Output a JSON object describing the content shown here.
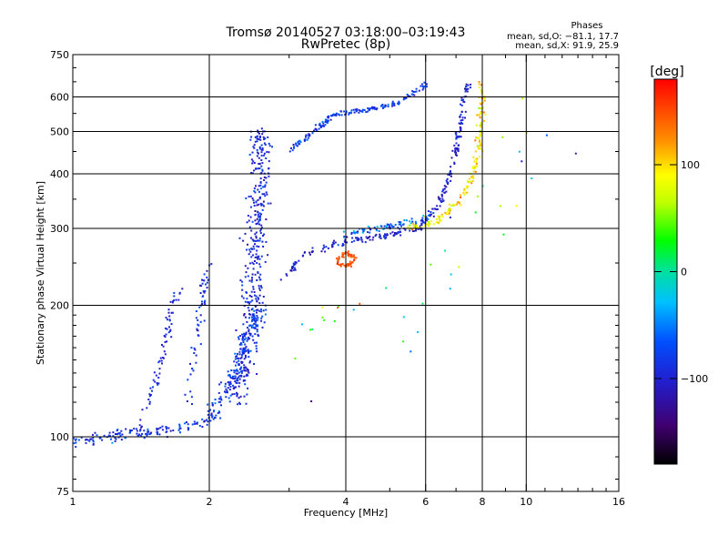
{
  "chart_data": {
    "type": "scatter",
    "title": "Tromsø 20140527 03:18:00–03:19:43",
    "subtitle": "RwPretec (8p)",
    "xlabel": "Frequency [MHz]",
    "ylabel": "Stationary phase Virtual Height [km]",
    "xscale": "log",
    "yscale": "log",
    "xlim": [
      1,
      16
    ],
    "ylim": [
      75,
      750
    ],
    "x_ticks": [
      1,
      2,
      4,
      6,
      8,
      10,
      16
    ],
    "x_minor_ticks": [
      3,
      5,
      7,
      9,
      11,
      12,
      13,
      14,
      15
    ],
    "y_ticks": [
      75,
      100,
      200,
      300,
      400,
      500,
      600,
      750
    ],
    "y_minor_ticks": [
      80,
      90,
      110,
      120,
      130,
      140,
      150,
      160,
      170,
      180,
      190,
      250,
      350,
      450,
      550,
      650,
      700
    ],
    "x_gridlines": [
      2,
      4,
      6,
      8,
      10
    ],
    "y_gridlines": [
      100,
      200,
      300,
      400,
      500,
      600
    ],
    "grid": true,
    "stats": {
      "heading": "Phases",
      "o_line": "mean, sd,O: −81.1, 17.7",
      "x_line": "mean, sd,X:  91.9, 25.9"
    },
    "colorbar": {
      "label": "[deg]",
      "range": [
        -180,
        180
      ],
      "ticks": [
        100,
        0,
        -100
      ],
      "tick_labels": [
        "100",
        "0",
        "−100"
      ]
    },
    "series": [
      {
        "name": "low-frequency E layer trace",
        "phase": -85,
        "spread": 25,
        "segments": [
          [
            1.0,
            98
          ],
          [
            1.3,
            101
          ],
          [
            1.7,
            105
          ],
          [
            2.05,
            110
          ]
        ],
        "count": 140,
        "jitter": 0.04
      },
      {
        "name": "F1 vertical branch near 1.6 MHz",
        "phase": -95,
        "spread": 15,
        "segments": [
          [
            1.4,
            105
          ],
          [
            1.55,
            140
          ],
          [
            1.65,
            200
          ],
          [
            1.72,
            215
          ]
        ],
        "count": 70,
        "jitter": 0.03
      },
      {
        "name": "F1 vertical branch near 1.9 MHz",
        "phase": -90,
        "spread": 15,
        "segments": [
          [
            1.8,
            120
          ],
          [
            1.9,
            180
          ],
          [
            1.95,
            230
          ],
          [
            2.0,
            250
          ]
        ],
        "count": 60,
        "jitter": 0.03
      },
      {
        "name": "main O-mode spread column",
        "phase": -95,
        "spread": 20,
        "segments": [
          [
            2.3,
            120
          ],
          [
            2.5,
            200
          ],
          [
            2.55,
            300
          ],
          [
            2.6,
            420
          ],
          [
            2.6,
            500
          ]
        ],
        "count": 420,
        "jitter": 0.08
      },
      {
        "name": "lower spread column",
        "phase": -80,
        "spread": 20,
        "segments": [
          [
            2.0,
            110
          ],
          [
            2.2,
            130
          ],
          [
            2.4,
            160
          ],
          [
            2.6,
            200
          ]
        ],
        "count": 160,
        "jitter": 0.06
      },
      {
        "name": "F2 O-mode lower trace",
        "phase": -100,
        "spread": 18,
        "segments": [
          [
            2.9,
            230
          ],
          [
            3.3,
            265
          ],
          [
            4.0,
            280
          ],
          [
            5.0,
            290
          ],
          [
            5.8,
            300
          ],
          [
            6.4,
            340
          ],
          [
            6.8,
            400
          ],
          [
            7.1,
            480
          ],
          [
            7.3,
            600
          ],
          [
            7.4,
            640
          ]
        ],
        "count": 260,
        "jitter": 0.025
      },
      {
        "name": "F2 O-mode upper trace",
        "phase": -80,
        "spread": 20,
        "segments": [
          [
            3.0,
            450
          ],
          [
            3.4,
            500
          ],
          [
            3.8,
            550
          ],
          [
            4.5,
            560
          ],
          [
            5.2,
            580
          ],
          [
            6.0,
            640
          ]
        ],
        "count": 170,
        "jitter": 0.02
      },
      {
        "name": "X-mode trace",
        "phase": 92,
        "spread": 26,
        "segments": [
          [
            5.5,
            300
          ],
          [
            6.3,
            310
          ],
          [
            7.0,
            340
          ],
          [
            7.5,
            380
          ],
          [
            7.8,
            430
          ],
          [
            7.9,
            500
          ],
          [
            8.0,
            600
          ],
          [
            7.9,
            650
          ]
        ],
        "count": 170,
        "jitter": 0.025
      },
      {
        "name": "oblique echo cluster near 4 MHz",
        "phase": 150,
        "spread": 10,
        "segments": [
          [
            3.8,
            250
          ],
          [
            4.0,
            245
          ],
          [
            4.2,
            255
          ],
          [
            4.0,
            265
          ],
          [
            3.8,
            250
          ]
        ],
        "count": 60,
        "jitter": 0.02
      },
      {
        "name": "F2 intermediate band",
        "phase": -60,
        "spread": 30,
        "segments": [
          [
            4.0,
            290
          ],
          [
            4.8,
            300
          ],
          [
            5.5,
            310
          ],
          [
            6.2,
            320
          ]
        ],
        "count": 70,
        "jitter": 0.03
      },
      {
        "name": "scattered noise echoes",
        "phase": 0,
        "spread": 100,
        "segments": [
          [
            3.0,
            150
          ],
          [
            5.0,
            200
          ],
          [
            7.0,
            250
          ],
          [
            9.0,
            400
          ],
          [
            11.0,
            600
          ]
        ],
        "count": 40,
        "jitter": 0.35
      }
    ]
  }
}
